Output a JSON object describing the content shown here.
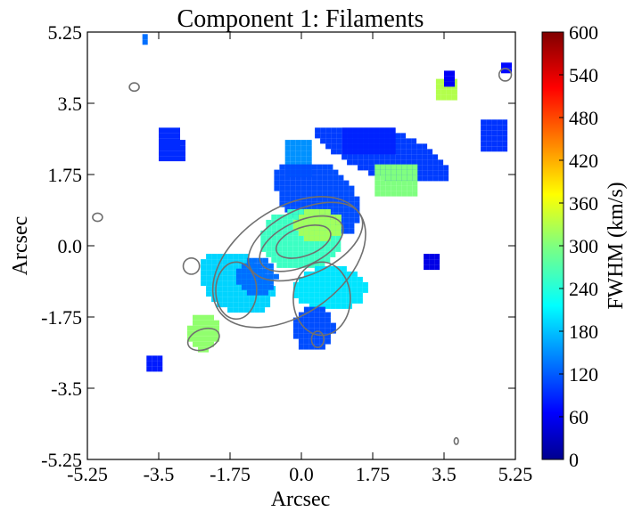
{
  "chart_data": {
    "type": "heatmap",
    "title": "Component 1: Filaments",
    "xlabel": "Arcsec",
    "ylabel": "Arcsec",
    "xlim": [
      -5.25,
      5.25
    ],
    "ylim": [
      -5.25,
      5.25
    ],
    "xticks": [
      -5.25,
      -3.5,
      -1.75,
      0.0,
      1.75,
      3.5,
      5.25
    ],
    "xtick_labels": [
      "-5.25",
      "-3.5",
      "-1.75",
      "0.0",
      "1.75",
      "3.5",
      "5.25"
    ],
    "yticks": [
      5.25,
      3.5,
      1.75,
      0.0,
      -1.75,
      -3.5,
      -5.25
    ],
    "ytick_labels": [
      "5.25",
      "3.5",
      "1.75",
      "0.0",
      "-1.75",
      "-3.5",
      "-5.25"
    ],
    "colorbar": {
      "label": "FWHM (km/s)",
      "range": [
        0,
        600
      ],
      "ticks": [
        0,
        60,
        120,
        180,
        240,
        300,
        360,
        420,
        480,
        540,
        600
      ],
      "colormap": "jet"
    },
    "contour_color": "#707070",
    "regions": [
      {
        "value": 110,
        "x": [
          0.2,
          3.8
        ],
        "y": [
          1.7,
          2.9
        ],
        "shape": "ellipse",
        "angle": 22
      },
      {
        "value": 95,
        "x": [
          1.0,
          2.3
        ],
        "y": [
          2.3,
          2.9
        ]
      },
      {
        "value": 105,
        "x": [
          4.4,
          5.0
        ],
        "y": [
          2.4,
          3.1
        ]
      },
      {
        "value": 100,
        "x": [
          -3.5,
          -3.0
        ],
        "y": [
          2.5,
          2.9
        ]
      },
      {
        "value": 160,
        "x": [
          -0.4,
          0.2
        ],
        "y": [
          1.8,
          2.6
        ]
      },
      {
        "value": 120,
        "x": [
          -0.8,
          1.6
        ],
        "y": [
          0.4,
          2.0
        ],
        "shape": "ellipse",
        "angle": 40
      },
      {
        "value": 260,
        "x": [
          -1.0,
          1.0
        ],
        "y": [
          -0.6,
          0.9
        ],
        "shape": "ellipse",
        "angle": 0
      },
      {
        "value": 320,
        "x": [
          -0.2,
          1.0
        ],
        "y": [
          0.1,
          0.9
        ],
        "shape": "ellipse",
        "angle": 0
      },
      {
        "value": 200,
        "x": [
          -2.6,
          -0.6
        ],
        "y": [
          -1.6,
          -0.2
        ],
        "shape": "ellipse",
        "angle": 35
      },
      {
        "value": 140,
        "x": [
          -1.6,
          -0.6
        ],
        "y": [
          -1.2,
          -0.3
        ],
        "shape": "ellipse",
        "angle": 0
      },
      {
        "value": 310,
        "x": [
          -2.8,
          -2.0
        ],
        "y": [
          -2.6,
          -1.7
        ],
        "shape": "ellipse",
        "angle": 0
      },
      {
        "value": 210,
        "x": [
          -0.2,
          1.6
        ],
        "y": [
          -1.6,
          -0.5
        ],
        "shape": "ellipse",
        "angle": 0
      },
      {
        "value": 120,
        "x": [
          -0.2,
          0.8
        ],
        "y": [
          -2.6,
          -1.5
        ],
        "shape": "ellipse",
        "angle": 0
      },
      {
        "value": 300,
        "x": [
          1.8,
          2.8
        ],
        "y": [
          1.3,
          2.0
        ]
      },
      {
        "value": 330,
        "x": [
          3.3,
          3.7
        ],
        "y": [
          3.6,
          4.1
        ]
      },
      {
        "value": 100,
        "x": [
          -3.5,
          -2.9
        ],
        "y": [
          2.2,
          2.6
        ]
      },
      {
        "value": 90,
        "x": [
          -3.8,
          -3.5
        ],
        "y": [
          -3.0,
          -2.7
        ]
      },
      {
        "value": 60,
        "x": [
          3.0,
          3.3
        ],
        "y": [
          -0.5,
          -0.2
        ]
      },
      {
        "value": 70,
        "x": [
          3.5,
          3.7
        ],
        "y": [
          4.0,
          4.3
        ]
      },
      {
        "value": 80,
        "x": [
          4.9,
          5.1
        ],
        "y": [
          4.3,
          4.5
        ]
      },
      {
        "value": 140,
        "x": [
          -3.9,
          -3.8
        ],
        "y": [
          5.0,
          5.2
        ]
      }
    ]
  }
}
